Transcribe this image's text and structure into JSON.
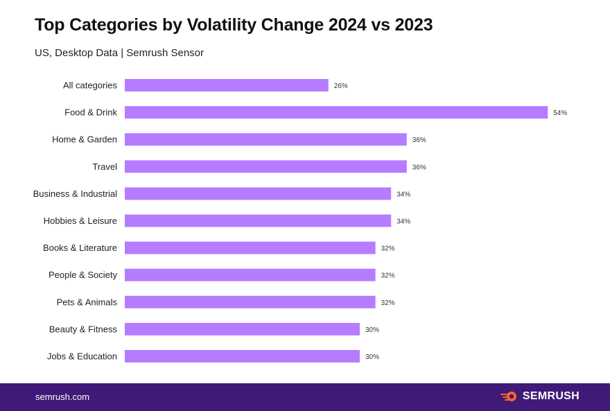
{
  "chart_data": {
    "type": "bar",
    "orientation": "horizontal",
    "title": "Top Categories by Volatility Change 2024 vs 2023",
    "subtitle": "US, Desktop Data | Semrush Sensor",
    "categories": [
      "All categories",
      "Food & Drink",
      "Home & Garden",
      "Travel",
      "Business & Industrial",
      "Hobbies & Leisure",
      "Books & Literature",
      "People & Society",
      "Pets & Animals",
      "Beauty & Fitness",
      "Jobs & Education"
    ],
    "values": [
      26,
      54,
      36,
      36,
      34,
      34,
      32,
      32,
      32,
      30,
      30
    ],
    "value_suffix": "%",
    "xlabel": "",
    "ylabel": "",
    "grid": false,
    "bar_color": "#b57cff"
  },
  "footer": {
    "url": "semrush.com",
    "brand": "SEMRUSH",
    "logo_icon": "semrush-fire-icon",
    "brand_color": "#ff642d"
  }
}
